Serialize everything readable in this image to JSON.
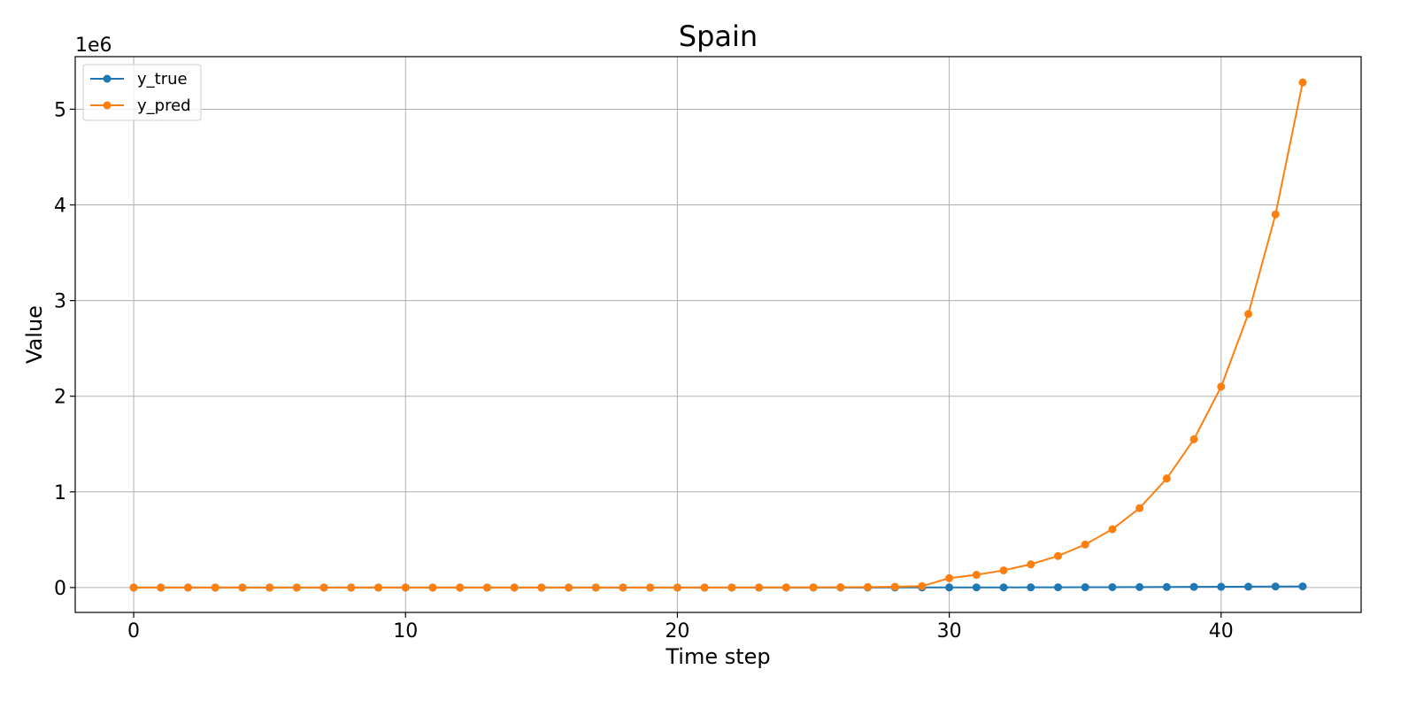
{
  "chart_data": {
    "type": "line",
    "title": "Spain",
    "xlabel": "Time step",
    "ylabel": "Value",
    "y_offset_label": "1e6",
    "xlim": [
      -2.15,
      45.15
    ],
    "ylim": [
      -0.26,
      5.55
    ],
    "x_ticks": [
      0,
      10,
      20,
      30,
      40
    ],
    "y_ticks": [
      0,
      1,
      2,
      3,
      4,
      5
    ],
    "grid": true,
    "legend_position": "top-left",
    "x": [
      0,
      1,
      2,
      3,
      4,
      5,
      6,
      7,
      8,
      9,
      10,
      11,
      12,
      13,
      14,
      15,
      16,
      17,
      18,
      19,
      20,
      21,
      22,
      23,
      24,
      25,
      26,
      27,
      28,
      29,
      30,
      31,
      32,
      33,
      34,
      35,
      36,
      37,
      38,
      39,
      40,
      41,
      42,
      43
    ],
    "series": [
      {
        "name": "y_true",
        "color": "#1f77b4",
        "values": [
          0,
          0,
          0,
          0,
          0,
          0,
          0,
          0,
          0,
          0,
          0,
          0,
          0,
          0,
          0,
          0,
          0,
          0,
          0,
          0,
          0,
          0,
          0,
          0.0001,
          0.0002,
          0.0003,
          0.0004,
          0.0006,
          0.0008,
          0.001,
          0.0012,
          0.0015,
          0.0018,
          0.0022,
          0.0027,
          0.0033,
          0.004,
          0.0048,
          0.0058,
          0.0068,
          0.008,
          0.0094,
          0.0108,
          0.0123
        ]
      },
      {
        "name": "y_pred",
        "color": "#ff7f0e",
        "values": [
          0,
          0,
          0,
          0,
          0,
          0,
          0,
          0,
          0,
          0,
          0,
          0,
          0,
          0,
          0,
          0,
          0,
          0,
          0,
          0,
          0.0001,
          0.0002,
          0.0004,
          0.0008,
          0.0014,
          0.0023,
          0.0035,
          0.0045,
          0.0085,
          0.0147,
          0.0984,
          0.133,
          0.18,
          0.243,
          0.33,
          0.45,
          0.61,
          0.83,
          1.14,
          1.55,
          2.1,
          2.86,
          3.9,
          5.28
        ]
      }
    ]
  }
}
